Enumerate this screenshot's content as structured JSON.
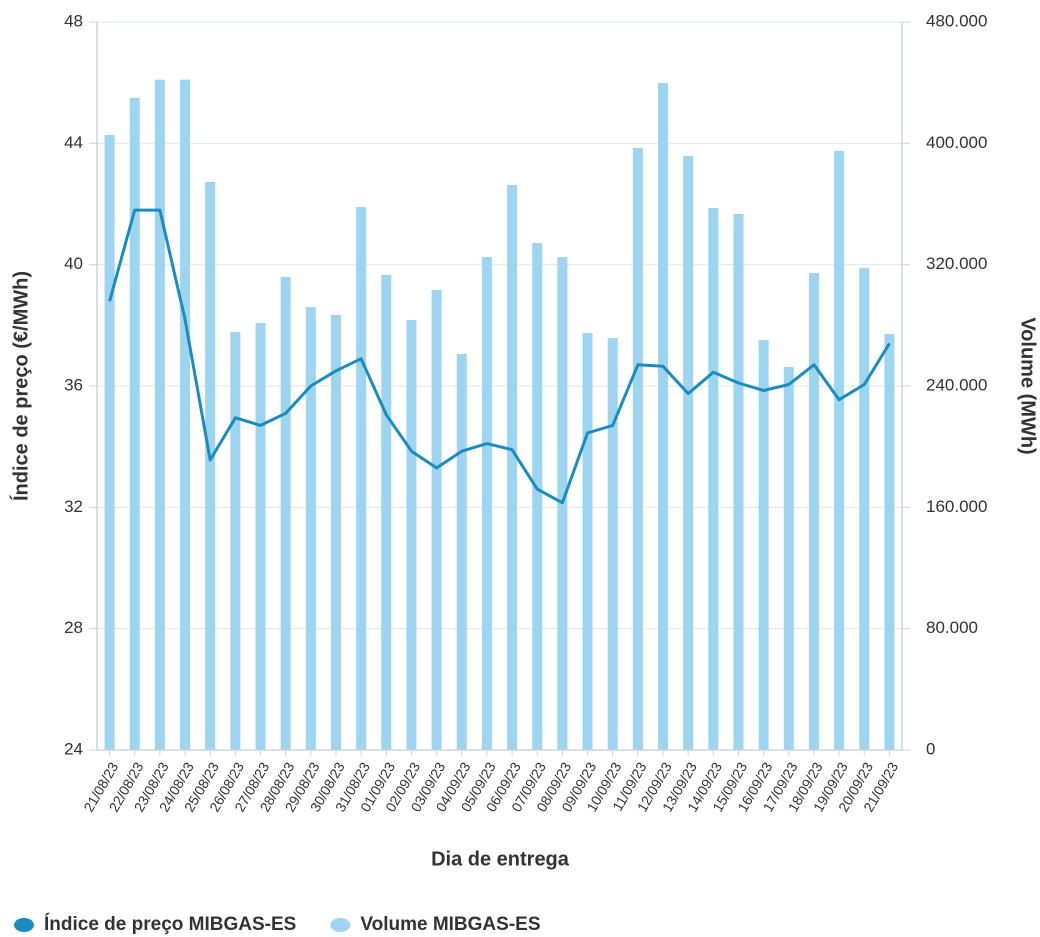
{
  "chart_data": {
    "type": "combo",
    "y_label": "Índice de preço (€/MWh)",
    "y2_label": "Volume (MWh)",
    "x_label": "Dia de entrega",
    "categories": [
      "21/08/23",
      "22/08/23",
      "23/08/23",
      "24/08/23",
      "25/08/23",
      "26/08/23",
      "27/08/23",
      "28/08/23",
      "29/08/23",
      "30/08/23",
      "31/08/23",
      "01/09/23",
      "02/09/23",
      "03/09/23",
      "04/09/23",
      "05/09/23",
      "06/09/23",
      "07/09/23",
      "08/09/23",
      "09/09/23",
      "10/09/23",
      "11/09/23",
      "12/09/23",
      "13/09/23",
      "14/09/23",
      "15/09/23",
      "16/09/23",
      "17/09/23",
      "18/09/23",
      "19/09/23",
      "20/09/23",
      "21/09/23"
    ],
    "series": [
      {
        "name": "Índice de preço MIBGAS-ES",
        "type": "line",
        "color": "#1a8cc0",
        "values": [
          38.8,
          41.8,
          41.8,
          38.2,
          33.56,
          34.95,
          34.7,
          35.1,
          36.0,
          36.5,
          36.9,
          35.05,
          33.85,
          33.3,
          33.85,
          34.1,
          33.9,
          32.6,
          32.15,
          34.45,
          34.7,
          36.7,
          36.65,
          35.75,
          36.45,
          36.1,
          35.85,
          36.05,
          36.7,
          35.55,
          36.05,
          37.4
        ]
      },
      {
        "name": "Volume MIBGAS-ES",
        "type": "bar",
        "axis": "y2",
        "color": "#9dd4f0",
        "values": [
          405500,
          430000,
          442000,
          442000,
          374500,
          275600,
          281500,
          311900,
          292000,
          286800,
          358000,
          313200,
          283500,
          303300,
          261100,
          325000,
          372500,
          334300,
          325000,
          275000,
          271600,
          397000,
          439800,
          391600,
          357400,
          353400,
          270300,
          252500,
          314500,
          395000,
          317800,
          274300
        ]
      }
    ],
    "ylim": [
      24,
      48
    ],
    "yticks": [
      24,
      28,
      32,
      36,
      40,
      44,
      48
    ],
    "y2lim": [
      0,
      480000
    ],
    "y2ticks": [
      0,
      {
        "value": 80000,
        "label": "80.000"
      },
      {
        "value": 160000,
        "label": "160.000"
      },
      {
        "value": 240000,
        "label": "240.000"
      },
      {
        "value": 320000,
        "label": "320.000"
      },
      {
        "value": 400000,
        "label": "400.000"
      },
      {
        "value": 480000,
        "label": "480.000"
      }
    ],
    "grid": true,
    "legend": "bottom-left"
  }
}
